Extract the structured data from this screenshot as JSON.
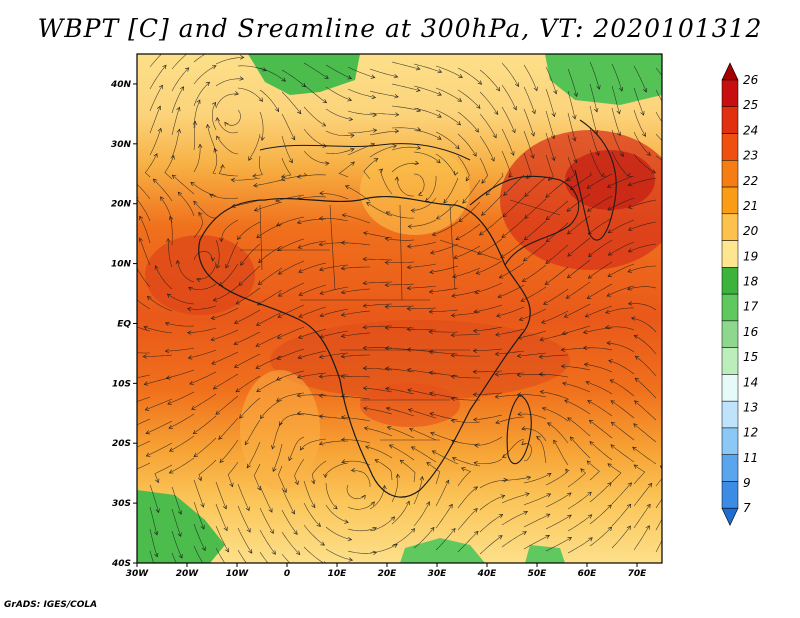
{
  "title": "WBPT [C] and Sreamline at 300hPa, VT: 2020101312",
  "credit": "GrADS: IGES/COLA",
  "map": {
    "lon_range": [
      -30,
      75
    ],
    "lat_range": [
      -40,
      45
    ],
    "lon_ticks": [
      "30W",
      "20W",
      "10W",
      "0",
      "10E",
      "20E",
      "30E",
      "40E",
      "50E",
      "60E",
      "70E"
    ],
    "lat_ticks": [
      "40N",
      "30N",
      "20N",
      "10N",
      "EQ",
      "10S",
      "20S",
      "30S",
      "40S"
    ]
  },
  "colorbar": {
    "levels": [
      "26",
      "25",
      "24",
      "23",
      "22",
      "21",
      "20",
      "19",
      "18",
      "17",
      "16",
      "15",
      "14",
      "13",
      "12",
      "11",
      "9",
      "7"
    ],
    "colors": [
      "#a50000",
      "#c80f0f",
      "#e1300f",
      "#f0500f",
      "#f57d14",
      "#fa9c16",
      "#fcc24d",
      "#fde68f",
      "#3cb43c",
      "#5fc85f",
      "#8ed88e",
      "#bceebc",
      "#e6fafa",
      "#bfe3fa",
      "#8cc8f5",
      "#5aa6ee",
      "#3c8ce6",
      "#1e6ed2"
    ]
  },
  "icons": {
    "streamline": "streamline-arrow-icon"
  }
}
